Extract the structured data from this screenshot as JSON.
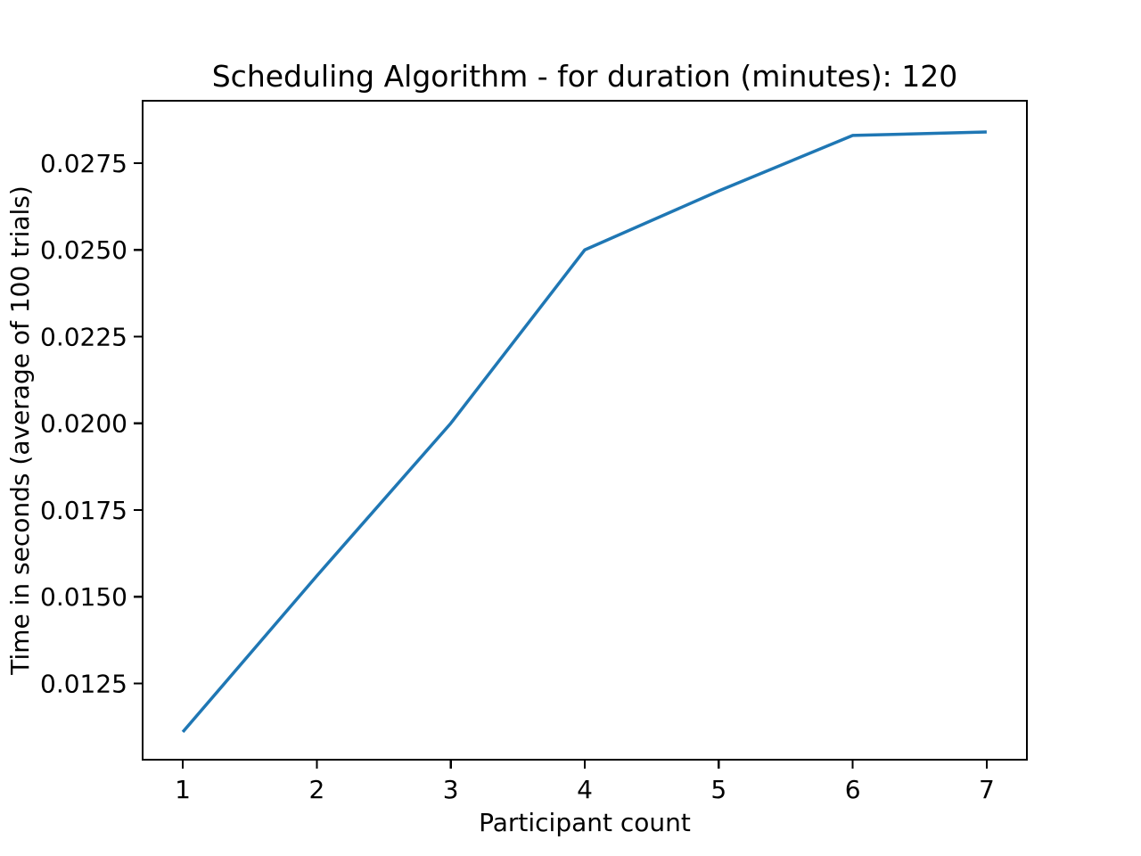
{
  "chart_data": {
    "type": "line",
    "title": "Scheduling Algorithm - for duration (minutes): 120",
    "xlabel": "Participant count",
    "ylabel": "Time in seconds (average of 100 trials)",
    "x": [
      1,
      2,
      3,
      4,
      5,
      6,
      7
    ],
    "y": [
      0.0111,
      0.0156,
      0.02,
      0.025,
      0.0267,
      0.0283,
      0.0284
    ],
    "x_tick_values": [
      1,
      2,
      3,
      4,
      5,
      6,
      7
    ],
    "x_tick_labels": [
      "1",
      "2",
      "3",
      "4",
      "5",
      "6",
      "7"
    ],
    "y_tick_values": [
      0.0125,
      0.015,
      0.0175,
      0.02,
      0.0225,
      0.025,
      0.0275
    ],
    "y_tick_labels": [
      "0.0125",
      "0.0150",
      "0.0175",
      "0.0200",
      "0.0225",
      "0.0250",
      "0.0275"
    ],
    "xlim": [
      0.7,
      7.3
    ],
    "ylim": [
      0.0103,
      0.0293
    ],
    "grid": false,
    "legend": null,
    "line_color": "#1f77b4",
    "axis_color": "#000000",
    "background_color": "#ffffff"
  }
}
